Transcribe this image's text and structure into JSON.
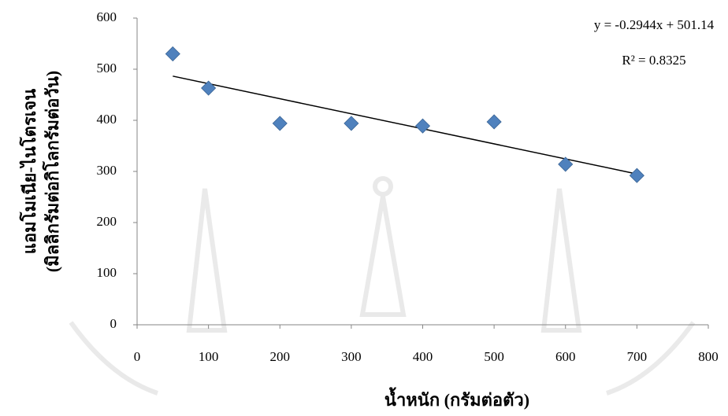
{
  "chart_data": {
    "type": "scatter",
    "x_label": "น้ำหนัก (กรัมต่อตัว)",
    "y_label": [
      "แอมโมเนีย-ไนโตรเจน",
      "(มิลลิกรัมต่อกิโลกรัมต่อวัน)"
    ],
    "annotations": [
      "y = -0.2944x + 501.14",
      "R² = 0.8325"
    ],
    "series": [
      {
        "color": "#4f81bd",
        "x": [
          50,
          100,
          200,
          300,
          400,
          500,
          600,
          700
        ],
        "values": [
          530,
          463,
          394,
          394,
          389,
          397,
          314,
          292
        ]
      }
    ],
    "trendline": {
      "color": "#000000",
      "x": [
        50,
        700
      ],
      "values": [
        486.42,
        295.06
      ]
    },
    "xlim": [
      0,
      800
    ],
    "xticks": [
      0,
      100,
      200,
      300,
      400,
      500,
      600,
      700,
      800
    ],
    "ylim": [
      0,
      600
    ],
    "yticks": [
      0,
      100,
      200,
      300,
      400,
      500,
      600
    ]
  }
}
